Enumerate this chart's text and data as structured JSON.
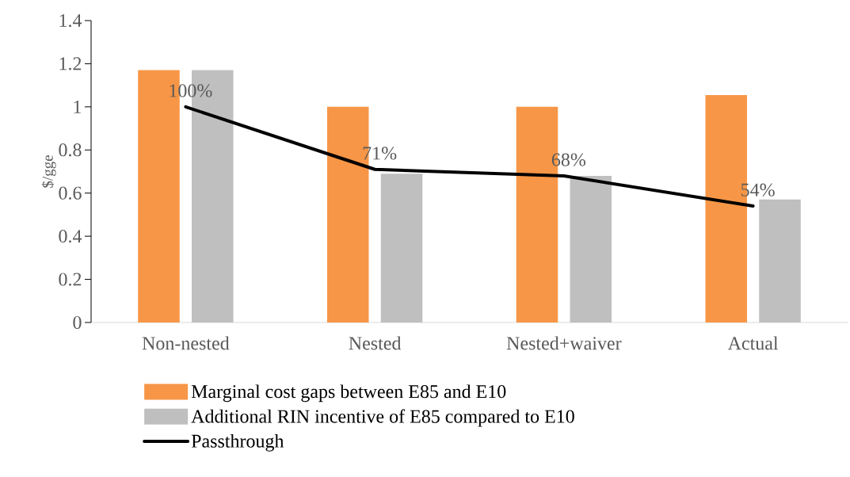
{
  "chart_data": {
    "type": "bar",
    "ylabel": "$/gge",
    "categories": [
      "Non-nested",
      "Nested",
      "Nested+waiver",
      "Actual"
    ],
    "series": [
      {
        "name": "Marginal cost gaps between E85 and E10",
        "color": "#f79646",
        "values": [
          1.17,
          1.0,
          1.0,
          1.055
        ]
      },
      {
        "name": "Additional RIN incentive of E85 compared to E10",
        "color": "#bfbfbf",
        "values": [
          1.17,
          0.69,
          0.68,
          0.57
        ]
      },
      {
        "name": "Passthrough",
        "type": "line",
        "color": "#000000",
        "values": [
          1.0,
          0.71,
          0.68,
          0.54
        ],
        "value_labels": [
          "100%",
          "71%",
          "68%",
          "54%"
        ]
      }
    ],
    "ylim": [
      0,
      1.4
    ],
    "yticks": [
      0,
      0.2,
      0.4,
      0.6,
      0.8,
      1,
      1.2,
      1.4
    ],
    "grid": false,
    "legend": "bottom",
    "marker": "none",
    "line_style": "solid"
  }
}
